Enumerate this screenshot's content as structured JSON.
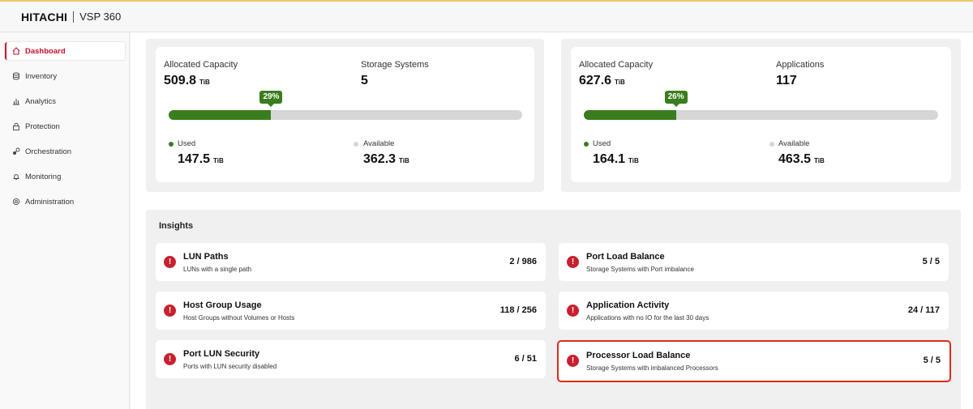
{
  "header": {
    "brand": "HITACHI",
    "product": "VSP 360"
  },
  "sidebar": {
    "items": [
      {
        "label": "Dashboard",
        "icon": "home-icon",
        "active": true
      },
      {
        "label": "Inventory",
        "icon": "database-icon"
      },
      {
        "label": "Analytics",
        "icon": "bar-chart-icon"
      },
      {
        "label": "Protection",
        "icon": "lock-icon"
      },
      {
        "label": "Orchestration",
        "icon": "link-icon"
      },
      {
        "label": "Monitoring",
        "icon": "bell-icon"
      },
      {
        "label": "Administration",
        "icon": "gear-icon"
      }
    ]
  },
  "summary": [
    {
      "allocated_label": "Allocated Capacity",
      "allocated_value": "509.8",
      "allocated_unit": "TiB",
      "second_label": "Storage Systems",
      "second_value": "5",
      "used_percent_label": "29%",
      "used_fraction": 0.29,
      "used_label": "Used",
      "used_value": "147.5",
      "used_unit": "TiB",
      "available_label": "Available",
      "available_value": "362.3",
      "available_unit": "TiB"
    },
    {
      "allocated_label": "Allocated Capacity",
      "allocated_value": "627.6",
      "allocated_unit": "TiB",
      "second_label": "Applications",
      "second_value": "117",
      "used_percent_label": "26%",
      "used_fraction": 0.26,
      "used_label": "Used",
      "used_value": "164.1",
      "used_unit": "TiB",
      "available_label": "Available",
      "available_value": "463.5",
      "available_unit": "TiB"
    }
  ],
  "insights": {
    "title": "Insights",
    "items": [
      {
        "title": "LUN Paths",
        "subtitle": "LUNs with a single path",
        "count": "2 / 986"
      },
      {
        "title": "Port Load Balance",
        "subtitle": "Storage Systems with Port imbalance",
        "count": "5 / 5"
      },
      {
        "title": "Host Group Usage",
        "subtitle": "Host Groups without Volumes or Hosts",
        "count": "118 / 256"
      },
      {
        "title": "Application Activity",
        "subtitle": "Applications with no IO for the last 30 days",
        "count": "24 / 117"
      },
      {
        "title": "Port LUN Security",
        "subtitle": "Ports with LUN security disabled",
        "count": "6 / 51"
      },
      {
        "title": "Processor Load Balance",
        "subtitle": "Storage Systems with imbalanced Processors",
        "count": "5 / 5",
        "highlighted": true
      }
    ]
  },
  "colors": {
    "accent": "#c8102e",
    "used": "#3a7d1e",
    "available": "#d6d6d6",
    "alert": "#c8202e",
    "highlight_border": "#e02a1d"
  }
}
